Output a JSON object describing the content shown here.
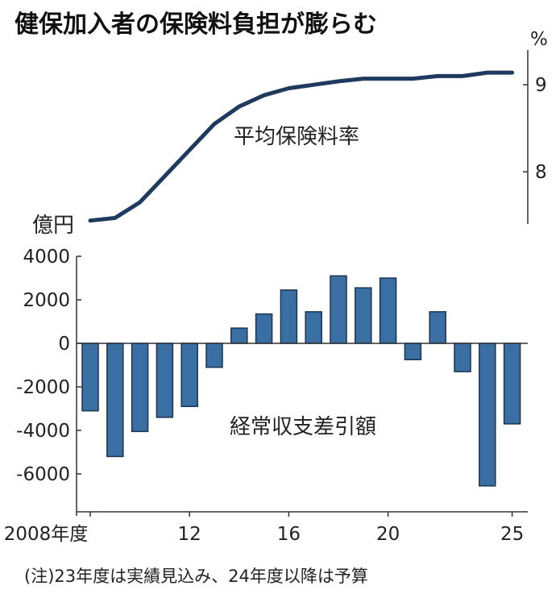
{
  "chart_data": [
    {
      "type": "line",
      "title": "健保加入者の保険料負担が膨らむ",
      "label": "平均保険料率",
      "unit": "%",
      "y_ticks": [
        "9",
        "8"
      ],
      "ylim": [
        7.4,
        9.4
      ],
      "x": [
        2008,
        2009,
        2010,
        2011,
        2012,
        2013,
        2014,
        2015,
        2016,
        2017,
        2018,
        2019,
        2020,
        2021,
        2022,
        2023,
        2024,
        2025
      ],
      "values": [
        7.44,
        7.47,
        7.65,
        7.95,
        8.25,
        8.55,
        8.75,
        8.88,
        8.96,
        9.0,
        9.04,
        9.07,
        9.07,
        9.07,
        9.1,
        9.1,
        9.14,
        9.14
      ]
    },
    {
      "type": "bar",
      "label": "経常収支差引額",
      "unit": "億円",
      "y_ticks": [
        "4000",
        "2000",
        "0",
        "-2000",
        "-4000",
        "-6000"
      ],
      "ylim": [
        -7500,
        4000
      ],
      "x_ticks": [
        "2008年度",
        "12",
        "16",
        "20",
        "25"
      ],
      "x": [
        2008,
        2009,
        2010,
        2011,
        2012,
        2013,
        2014,
        2015,
        2016,
        2017,
        2018,
        2019,
        2020,
        2021,
        2022,
        2023,
        2024,
        2025
      ],
      "values": [
        -3100,
        -5200,
        -4050,
        -3400,
        -2900,
        -1100,
        700,
        1350,
        2450,
        1450,
        3100,
        2550,
        3000,
        -750,
        1450,
        -1300,
        -6550,
        -3700
      ]
    }
  ],
  "note": "(注)23年度は実績見込み、24年度以降は予算"
}
